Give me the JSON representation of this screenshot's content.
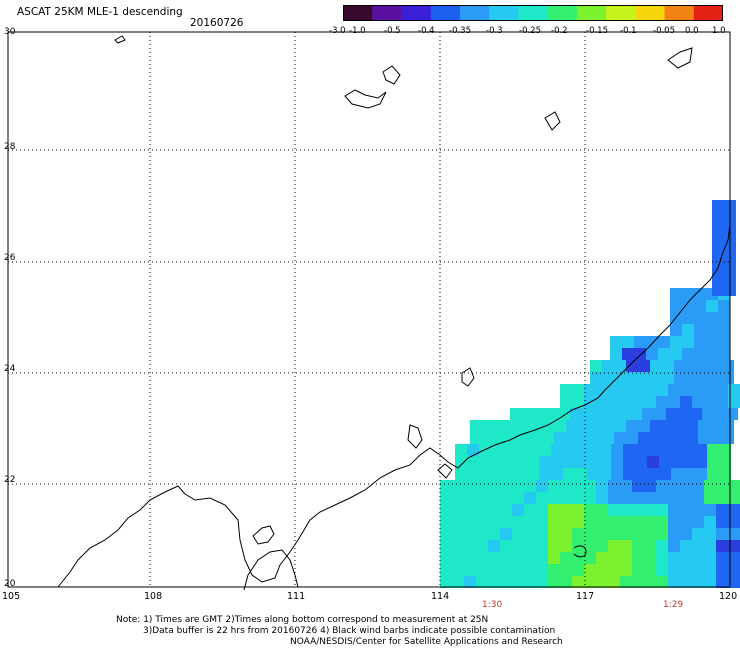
{
  "header": {
    "title": "ASCAT 25KM MLE-1 descending",
    "date": "20160726"
  },
  "colorbar": {
    "labels": [
      "-3.0",
      "-1.0",
      "-0.5",
      "-0.4",
      "-0.35",
      "-0.3",
      "-0.25",
      "-0.2",
      "-0.15",
      "-0.1",
      "-0.05",
      "0.0",
      "1.0"
    ],
    "colors": [
      "#3a0a2c",
      "#5a0fa0",
      "#3b1fd6",
      "#1a5ff0",
      "#2a9cf7",
      "#26c9f0",
      "#1fe8c8",
      "#33ef70",
      "#7cf22e",
      "#c7f21b",
      "#f7d50d",
      "#f28214",
      "#e32214"
    ]
  },
  "axes": {
    "y_ticks": [
      "30",
      "28",
      "26",
      "24",
      "22",
      "20"
    ],
    "x_ticks": [
      "105",
      "108",
      "111",
      "114",
      "117",
      "120"
    ],
    "time_labels": [
      "1:30",
      "1:29"
    ]
  },
  "map_data": {
    "lat_range": [
      20,
      30
    ],
    "lon_range": [
      105,
      120
    ],
    "grid_step_lat": 2,
    "grid_step_lon": 3
  },
  "notes": {
    "line1": "Note: 1) Times are GMT 2)Times along bottom correspond to measurement at 25N",
    "line2": "3)Data buffer is 22 hrs from 20160726 4) Black wind barbs indicate possible contamination",
    "line3": "NOAA/NESDIS/Center for Satellite Applications and Research"
  }
}
